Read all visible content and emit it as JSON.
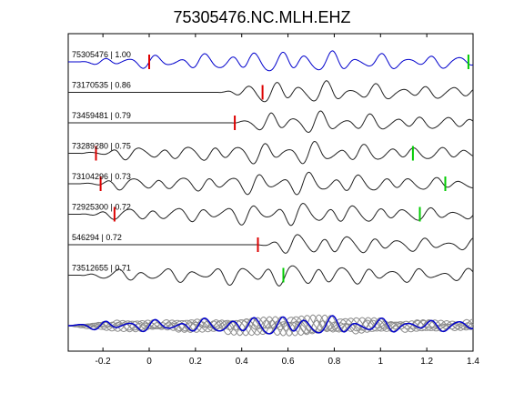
{
  "chart_data": {
    "type": "line",
    "title": "75305476.NC.MLH.EHZ",
    "xlabel": "",
    "ylabel": "",
    "xlim": [
      -0.35,
      1.4
    ],
    "x_ticks": [
      "-0.2",
      "0",
      "0.2",
      "0.4",
      "0.6",
      "0.8",
      "1",
      "1.2",
      "1.4"
    ],
    "x_tick_values": [
      -0.2,
      0,
      0.2,
      0.4,
      0.6,
      0.8,
      1.0,
      1.2,
      1.4
    ],
    "grid": false,
    "colors": {
      "reference": "#0000cc",
      "trace": "#222222",
      "stack": "#8c8c8c",
      "p_pick": "#dd0000",
      "s_pick": "#00cc00"
    },
    "series": [
      {
        "name": "75305476 | 1.00",
        "onset": -0.3,
        "p_pick": 0.0,
        "s_pick": 1.38,
        "reference": true
      },
      {
        "name": "73170535 | 0.86",
        "onset": 0.3,
        "p_pick": 0.49,
        "s_pick": null
      },
      {
        "name": "73459481 | 0.79",
        "onset": 0.36,
        "p_pick": 0.37,
        "s_pick": null
      },
      {
        "name": "73289280 | 0.75",
        "onset": -0.3,
        "p_pick": -0.23,
        "s_pick": 1.14
      },
      {
        "name": "73104296 | 0.73",
        "onset": -0.3,
        "p_pick": -0.21,
        "s_pick": 1.28
      },
      {
        "name": "72925300 | 0.72",
        "onset": -0.3,
        "p_pick": -0.15,
        "s_pick": 1.17
      },
      {
        "name": "546294 | 0.72",
        "onset": 0.46,
        "p_pick": 0.47,
        "s_pick": null
      },
      {
        "name": "73512655 | 0.71",
        "onset": -0.3,
        "p_pick": null,
        "s_pick": 0.58
      }
    ],
    "stack": {
      "count": 8
    }
  }
}
